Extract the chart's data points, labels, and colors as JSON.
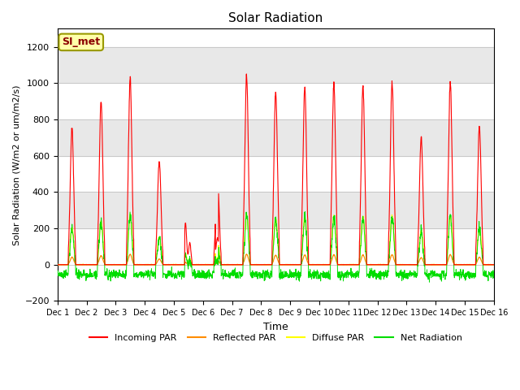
{
  "title": "Solar Radiation",
  "xlabel": "Time",
  "ylabel": "Solar Radiation (W/m2 or um/m2/s)",
  "ylim": [
    -200,
    1300
  ],
  "yticks": [
    -200,
    0,
    200,
    400,
    600,
    800,
    1000,
    1200
  ],
  "xlim": [
    0,
    15
  ],
  "xtick_labels": [
    "Dec 1",
    "Dec 2",
    "Dec 3",
    "Dec 4",
    "Dec 5",
    "Dec 6",
    "Dec 7",
    "Dec 8",
    "Dec 9",
    "Dec 10",
    "Dec 11",
    "Dec 12",
    "Dec 13",
    "Dec 14",
    "Dec 15",
    "Dec 16"
  ],
  "station_label": "SI_met",
  "colors": {
    "incoming": "#ff0000",
    "reflected": "#ff8c00",
    "diffuse": "#ffff00",
    "net": "#00dd00",
    "band1": "#e8e8e8",
    "band2": "#e8e8e8"
  },
  "legend": [
    "Incoming PAR",
    "Reflected PAR",
    "Diffuse PAR",
    "Net Radiation"
  ],
  "daily_peaks": [
    750,
    900,
    1030,
    570,
    235,
    480,
    1040,
    960,
    975,
    1000,
    985,
    1010,
    700,
    1005,
    760
  ],
  "n_points_per_day": 144
}
